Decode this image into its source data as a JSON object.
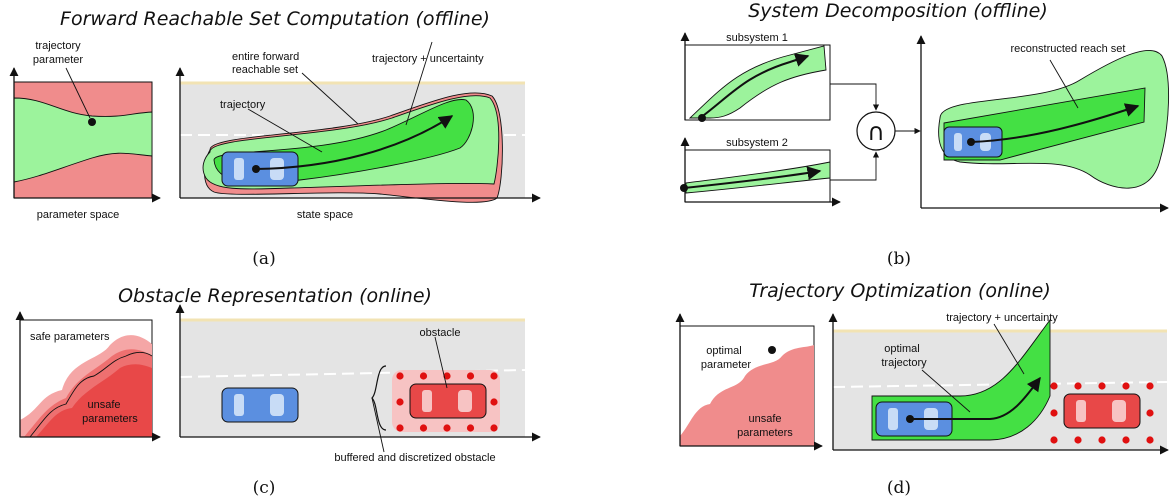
{
  "panel_a": {
    "title": "Forward Reachable Set Computation (offline)",
    "trajectory_parameter_1": "trajectory",
    "trajectory_parameter_2": "parameter",
    "parameter_space": "parameter space",
    "entire_frs_1": "entire forward",
    "entire_frs_2": "reachable set",
    "trajectory_uncertainty": "trajectory + uncertainty",
    "trajectory": "trajectory",
    "state_space": "state space",
    "caption": "(a)"
  },
  "panel_b": {
    "title": "System Decomposition (offline)",
    "subsystem_1": "subsystem 1",
    "subsystem_2": "subsystem 2",
    "reconstructed": "reconstructed reach set",
    "intersection_symbol": "∩",
    "caption": "(b)"
  },
  "panel_c": {
    "title": "Obstacle Representation (online)",
    "safe_parameters": "safe parameters",
    "unsafe_1": "unsafe",
    "unsafe_2": "parameters",
    "obstacle": "obstacle",
    "buffered": "buffered and discretized obstacle",
    "caption": "(c)"
  },
  "panel_d": {
    "title": "Trajectory Optimization (online)",
    "optimal_parameter_1": "optimal",
    "optimal_parameter_2": "parameter",
    "unsafe_1": "unsafe",
    "unsafe_2": "parameters",
    "trajectory_uncertainty": "trajectory + uncertainty",
    "optimal_trajectory_1": "optimal",
    "optimal_trajectory_2": "trajectory",
    "caption": "(d)"
  },
  "colors": {
    "safe_green": "#9cf39c",
    "bright_green": "#44e044",
    "unsafe_red": "#f08c8c",
    "obstacle_red": "#e84848",
    "dot_red": "#e01010",
    "road_gray": "#e4e4e4",
    "car_blue": "#5b8fe0",
    "window_blue": "#c8dcf6"
  }
}
